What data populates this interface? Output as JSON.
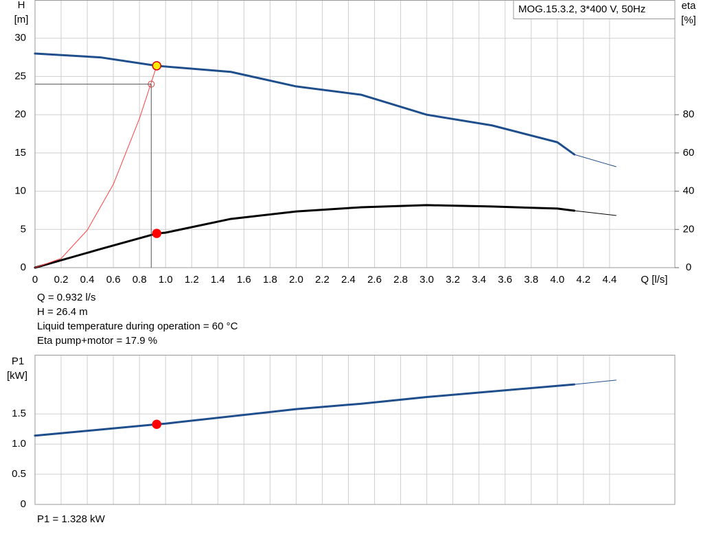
{
  "chart_data": [
    {
      "type": "line",
      "title": "MOG.15.3.2, 3*400 V, 50Hz",
      "ylabel": "H",
      "yunit": "[m]",
      "y2label": "eta",
      "y2unit": "[%]",
      "xlabel": "Q [l/s]",
      "xlim": [
        0,
        4.9
      ],
      "xticks": [
        0,
        0.2,
        0.4,
        0.6,
        0.8,
        {
          "value": 1,
          "label": "1.0"
        },
        1.2,
        1.4,
        1.6,
        1.8,
        {
          "value": 2,
          "label": "2.0"
        },
        2.2,
        2.4,
        2.6,
        2.8,
        {
          "value": 3,
          "label": "3.0"
        },
        3.2,
        3.4,
        3.6,
        3.8,
        {
          "value": 4,
          "label": "4.0"
        },
        4.2,
        4.4
      ],
      "ylim": [
        0,
        35
      ],
      "yticks": [
        0,
        5,
        10,
        15,
        20,
        25,
        30
      ],
      "y2lim": [
        0,
        140
      ],
      "y2ticks": [
        0,
        20,
        40,
        60,
        80
      ],
      "grid": true,
      "series": [
        {
          "color": "#1f4e8c",
          "width": 3,
          "x": [
            0,
            0.5,
            0.932,
            1.0,
            1.5,
            2.0,
            2.5,
            3.0,
            3.5,
            4.0,
            4.13
          ],
          "values": [
            28,
            27.5,
            26.4,
            26.3,
            25.6,
            23.7,
            22.6,
            20,
            18.6,
            16.4,
            14.8
          ]
        },
        {
          "color": "#1f4e8c",
          "width": 1,
          "x": [
            4.13,
            4.45
          ],
          "values": [
            14.8,
            13.2
          ]
        },
        {
          "color": "#000000",
          "width": 3,
          "axis": "y2",
          "x": [
            0,
            0.5,
            0.932,
            1.0,
            1.5,
            2.0,
            2.5,
            3.0,
            3.5,
            4.0,
            4.13
          ],
          "values": [
            0,
            9.7,
            17.9,
            18.3,
            25.5,
            29.4,
            31.6,
            32.7,
            32,
            30.9,
            29.8
          ]
        },
        {
          "color": "#000000",
          "width": 1,
          "axis": "y2",
          "x": [
            4.13,
            4.45
          ],
          "values": [
            29.8,
            27.3
          ]
        },
        {
          "color": "#ff4040",
          "width": 1,
          "x": [
            0,
            0.2,
            0.4,
            0.6,
            0.8,
            0.932
          ],
          "values": [
            0,
            1.2,
            4.9,
            10.9,
            19.5,
            26.4
          ]
        },
        {
          "color": "#e04040",
          "marker": "none",
          "guide": true,
          "x": [
            0.89
          ],
          "values": [
            24
          ]
        },
        {
          "color": "#e00000",
          "marker": "#ffee00",
          "x": [
            0.932
          ],
          "values": [
            26.4
          ]
        },
        {
          "color": "#ff0000",
          "marker": "#ff0000",
          "axis": "y2",
          "x": [
            0.932
          ],
          "values": [
            17.9
          ]
        }
      ],
      "notes": [
        "Q = 0.932 l/s",
        "H = 26.4 m",
        "Liquid temperature during operation = 60 °C",
        "Eta pump+motor = 17.9 %"
      ]
    },
    {
      "type": "line",
      "ylabel": "P1",
      "yunit": "[kW]",
      "xlim": [
        0,
        4.9
      ],
      "ylim": [
        0,
        2.48
      ],
      "yticks": [
        0,
        0.5,
        {
          "value": 1,
          "label": "1.0"
        },
        1.5
      ],
      "grid": true,
      "series": [
        {
          "color": "#1f4e8c",
          "width": 3,
          "x": [
            0,
            0.932,
            1.0,
            2.0,
            2.5,
            3.0,
            4.13
          ],
          "values": [
            1.14,
            1.328,
            1.34,
            1.58,
            1.67,
            1.78,
            1.99
          ]
        },
        {
          "color": "#1f4e8c",
          "width": 1,
          "x": [
            4.13,
            4.45
          ],
          "values": [
            1.99,
            2.06
          ]
        },
        {
          "color": "#ff0000",
          "marker": "#ff0000",
          "x": [
            0.932
          ],
          "values": [
            1.328
          ]
        }
      ],
      "notes": [
        "P1 = 1.328 kW"
      ]
    }
  ]
}
